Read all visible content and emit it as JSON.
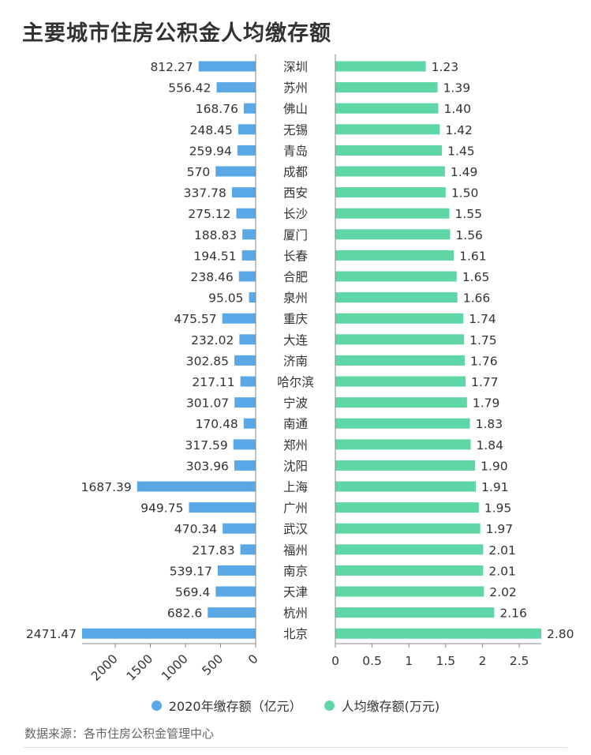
{
  "title": "主要城市住房公积金人均缴存额",
  "source": "数据来源：各市住房公积金管理中心",
  "colors": {
    "left_series": "#5aa9e6",
    "right_series": "#5fd6a6"
  },
  "chart_data": {
    "type": "bar",
    "title": "主要城市住房公积金人均缴存额",
    "categories": [
      "深圳",
      "苏州",
      "佛山",
      "无锡",
      "青岛",
      "成都",
      "西安",
      "长沙",
      "厦门",
      "长春",
      "合肥",
      "泉州",
      "重庆",
      "大连",
      "济南",
      "哈尔滨",
      "宁波",
      "南通",
      "郑州",
      "沈阳",
      "上海",
      "广州",
      "武汉",
      "福州",
      "南京",
      "天津",
      "杭州",
      "北京"
    ],
    "series": [
      {
        "name": "2020年缴存额（亿元）",
        "values": [
          812.27,
          556.42,
          168.76,
          248.45,
          259.94,
          570,
          337.78,
          275.12,
          188.83,
          194.51,
          238.46,
          95.05,
          475.57,
          232.02,
          302.85,
          217.11,
          301.07,
          170.48,
          317.59,
          303.96,
          1687.39,
          949.75,
          470.34,
          217.83,
          539.17,
          569.4,
          682.6,
          2471.47
        ],
        "labels": [
          "812.27",
          "556.42",
          "168.76",
          "248.45",
          "259.94",
          "570",
          "337.78",
          "275.12",
          "188.83",
          "194.51",
          "238.46",
          "95.05",
          "475.57",
          "232.02",
          "302.85",
          "217.11",
          "301.07",
          "170.48",
          "317.59",
          "303.96",
          "1687.39",
          "949.75",
          "470.34",
          "217.83",
          "539.17",
          "569.4",
          "682.6",
          "2471.47"
        ],
        "axis_ticks": [
          "2000",
          "1500",
          "1000",
          "500",
          "0"
        ],
        "tick_values": [
          2000,
          1500,
          1000,
          500,
          0
        ],
        "xlim": [
          0,
          2471.47
        ],
        "direction": "reversed"
      },
      {
        "name": "人均缴存额(万元)",
        "values": [
          1.23,
          1.39,
          1.4,
          1.42,
          1.45,
          1.49,
          1.5,
          1.55,
          1.56,
          1.61,
          1.65,
          1.66,
          1.74,
          1.75,
          1.76,
          1.77,
          1.79,
          1.83,
          1.84,
          1.9,
          1.91,
          1.95,
          1.97,
          2.01,
          2.01,
          2.02,
          2.16,
          2.8
        ],
        "labels": [
          "1.23",
          "1.39",
          "1.40",
          "1.42",
          "1.45",
          "1.49",
          "1.50",
          "1.55",
          "1.56",
          "1.61",
          "1.65",
          "1.66",
          "1.74",
          "1.75",
          "1.76",
          "1.77",
          "1.79",
          "1.83",
          "1.84",
          "1.90",
          "1.91",
          "1.95",
          "1.97",
          "2.01",
          "2.01",
          "2.02",
          "2.16",
          "2.80"
        ],
        "axis_ticks": [
          "0",
          "0.5",
          "1",
          "1.5",
          "2",
          "2.5"
        ],
        "tick_values": [
          0,
          0.5,
          1,
          1.5,
          2,
          2.5
        ],
        "xlim": [
          0,
          2.8
        ]
      }
    ],
    "legend_position": "bottom-center",
    "grid": false
  }
}
